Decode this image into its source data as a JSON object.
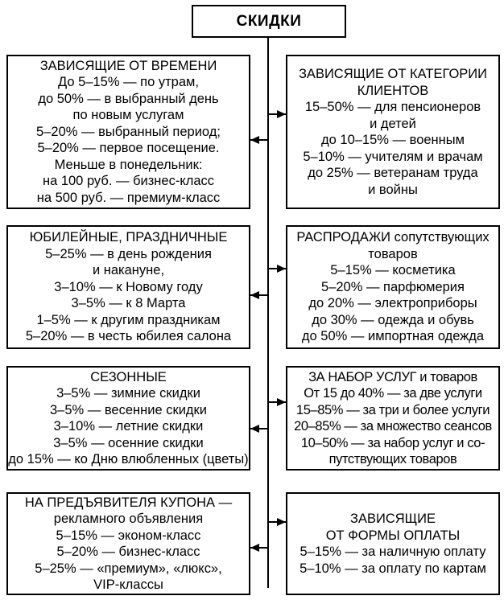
{
  "diagram": {
    "title": "СКИДКИ",
    "colors": {
      "line": "#000000",
      "background": "#ffffff",
      "text": "#000000"
    }
  },
  "boxes": [
    {
      "id": "time-based",
      "title_lines": [
        "ЗАВИСЯЩИЕ ОТ ВРЕМЕНИ"
      ],
      "lines": [
        "До 5–15% — по утрам,",
        "до 50% — в выбранный день",
        "по новым услугам",
        "5–20% — выбранный период;",
        "5–20% — первое посещение.",
        "Меньше в понедельник:",
        "на 100 руб. — бизнес-класс",
        "на 500 руб. — премиум-класс"
      ]
    },
    {
      "id": "client-category",
      "title_lines": [
        "ЗАВИСЯЩИЕ ОТ КАТЕГОРИИ",
        "КЛИЕНТОВ"
      ],
      "lines": [
        "15–50% — для пенсионеров",
        "и детей",
        "до 10–15% — военным",
        "5–10% — учителям и врачам",
        "до 25% — ветеранам труда",
        "и войны"
      ]
    },
    {
      "id": "jubilee-holiday",
      "title_lines": [
        "ЮБИЛЕЙНЫЕ, ПРАЗДНИЧНЫЕ"
      ],
      "lines": [
        "5–25% — в день рождения",
        "и накануне,",
        "3–10% — к Новому году",
        "3–5% — к 8 Марта",
        "1–5% — к другим праздникам",
        "5–20% — в честь юбилея салона"
      ]
    },
    {
      "id": "related-goods-sales",
      "title_lines": [
        "РАСПРОДАЖИ сопутствующих",
        "товаров"
      ],
      "lines": [
        "5–15% — косметика",
        "5–20% — парфюмерия",
        "до 20% — электроприборы",
        "до 30% — одежда и обувь",
        "до 50% — импортная одежда"
      ]
    },
    {
      "id": "seasonal",
      "title_lines": [
        "СЕЗОННЫЕ"
      ],
      "lines": [
        "3–5% — зимние скидки",
        "3–5% — весенние скидки",
        "3–10% — летние скидки",
        "3–5% — осенние скидки",
        "до 15% — ко Дню влюбленных (цветы)"
      ]
    },
    {
      "id": "service-bundle",
      "title_lines": [
        "ЗА НАБОР УСЛУГ и товаров"
      ],
      "lines": [
        "От 15 до 40% — за две услуги",
        "15–85% — за три и более услуги",
        "20–85% — за множество сеансов",
        "10–50% — за набор услуг и со-",
        "путствующих товаров"
      ]
    },
    {
      "id": "coupon-bearer",
      "title_lines": [
        "НА ПРЕДЪЯВИТЕЛЯ КУПОНА —",
        "рекламного объявления"
      ],
      "lines": [
        "5–15% — эконом-класс",
        "5–20% — бизнес-класс",
        "5–25% — «премиум», «люкс»,",
        "VIP-классы"
      ]
    },
    {
      "id": "payment-form",
      "title_lines": [
        "ЗАВИСЯЩИЕ",
        "ОТ ФОРМЫ ОПЛАТЫ"
      ],
      "lines": [
        "5–15% — за наличную оплату",
        "5–10% — за оплату по картам"
      ]
    }
  ]
}
